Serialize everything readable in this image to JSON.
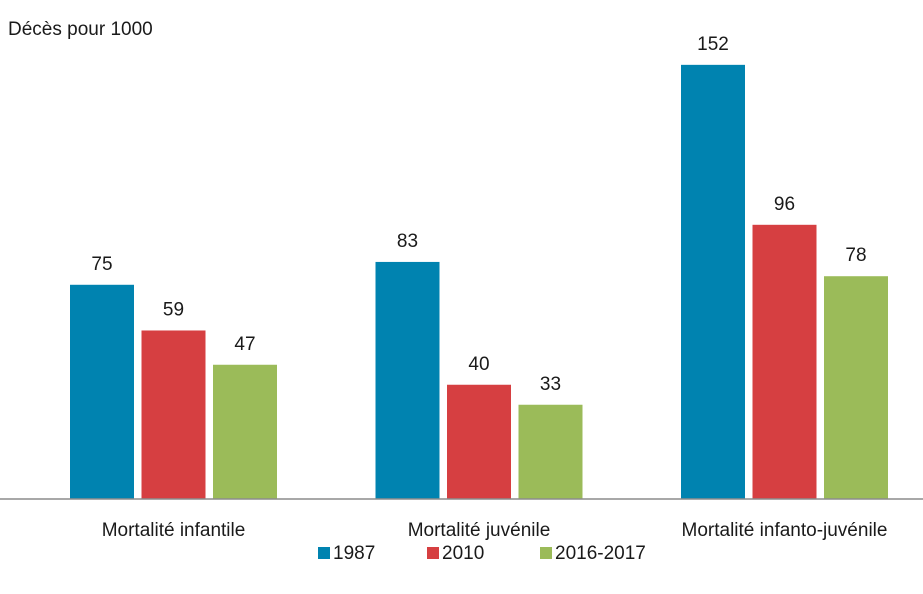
{
  "chart_data": {
    "type": "bar",
    "title": "Décès pour 1000",
    "categories": [
      "Mortalité infantile",
      "Mortalité juvénile",
      "Mortalité infanto-juvénile"
    ],
    "series": [
      {
        "name": "1987",
        "color": "#0083b0",
        "values": [
          75,
          83,
          152
        ]
      },
      {
        "name": "2010",
        "color": "#d63f41",
        "values": [
          59,
          40,
          96
        ]
      },
      {
        "name": "2016-2017",
        "color": "#9bbb59",
        "values": [
          47,
          33,
          78
        ]
      }
    ],
    "ylim": [
      0,
      160
    ]
  }
}
